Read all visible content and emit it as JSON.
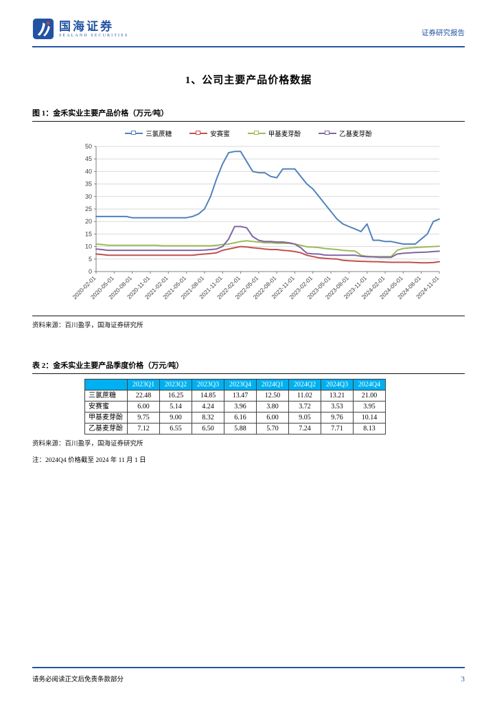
{
  "header": {
    "brand_name": "国海证券",
    "brand_sub": "SEALAND SECURITIES",
    "report_type": "证券研究报告"
  },
  "section_title": "1、公司主要产品价格数据",
  "figure": {
    "caption": "图 1：金禾实业主要产品价格（万元/吨）",
    "source": "资料来源：百川盈孚，国海证券研究所"
  },
  "chart_data": {
    "type": "line",
    "title": "",
    "xlabel": "",
    "ylabel": "",
    "ylim": [
      0,
      50
    ],
    "ytick_step": 5,
    "grid": true,
    "legend_position": "top",
    "xtick_every": 3,
    "x": [
      "2020-02-01",
      "2020-03-01",
      "2020-04-01",
      "2020-05-01",
      "2020-06-01",
      "2020-07-01",
      "2020-08-01",
      "2020-09-01",
      "2020-10-01",
      "2020-11-01",
      "2020-12-01",
      "2021-01-01",
      "2021-02-01",
      "2021-03-01",
      "2021-04-01",
      "2021-05-01",
      "2021-06-01",
      "2021-07-01",
      "2021-08-01",
      "2021-09-01",
      "2021-10-01",
      "2021-11-01",
      "2021-12-01",
      "2022-01-01",
      "2022-02-01",
      "2022-03-01",
      "2022-04-01",
      "2022-05-01",
      "2022-06-01",
      "2022-07-01",
      "2022-08-01",
      "2022-09-01",
      "2022-10-01",
      "2022-11-01",
      "2022-12-01",
      "2023-01-01",
      "2023-02-01",
      "2023-03-01",
      "2023-04-01",
      "2023-05-01",
      "2023-06-01",
      "2023-07-01",
      "2023-08-01",
      "2023-09-01",
      "2023-10-01",
      "2023-11-01",
      "2023-12-01",
      "2024-01-01",
      "2024-02-01",
      "2024-03-01",
      "2024-04-01",
      "2024-05-01",
      "2024-06-01",
      "2024-07-01",
      "2024-08-01",
      "2024-09-01",
      "2024-10-01",
      "2024-11-01"
    ],
    "series": [
      {
        "name": "三氯蔗糖",
        "color": "#4F81BD",
        "values": [
          22,
          22,
          22,
          22,
          22,
          22,
          21.5,
          21.5,
          21.5,
          21.5,
          21.5,
          21.5,
          21.5,
          21.5,
          21.5,
          21.5,
          22,
          23,
          25,
          30,
          37,
          43,
          47.5,
          48,
          48,
          44,
          40,
          39.5,
          39.5,
          38,
          37.5,
          41,
          41,
          41,
          38,
          35,
          33,
          30,
          27,
          24,
          21,
          19,
          18,
          17,
          16,
          19,
          12.5,
          12.5,
          12,
          12,
          11.5,
          11,
          11,
          11,
          13,
          15,
          20,
          21
        ]
      },
      {
        "name": "安赛蜜",
        "color": "#C0504D",
        "values": [
          7,
          6.8,
          6.5,
          6.5,
          6.5,
          6.5,
          6.5,
          6.5,
          6.5,
          6.5,
          6.5,
          6.5,
          6.5,
          6.5,
          6.5,
          6.5,
          6.5,
          6.8,
          7,
          7.2,
          7.5,
          8.5,
          9,
          9.5,
          10,
          9.8,
          9.5,
          9.3,
          9,
          8.8,
          8.8,
          8.5,
          8.3,
          8,
          7.5,
          6.5,
          6,
          5.5,
          5.3,
          5.1,
          5,
          4.5,
          4.3,
          4.2,
          4.1,
          4,
          3.96,
          3.9,
          3.8,
          3.7,
          3.72,
          3.72,
          3.72,
          3.6,
          3.5,
          3.5,
          3.6,
          3.95
        ]
      },
      {
        "name": "甲基麦芽酚",
        "color": "#9BBB59",
        "values": [
          11,
          10.8,
          10.5,
          10.5,
          10.5,
          10.5,
          10.5,
          10.5,
          10.5,
          10.5,
          10.5,
          10.3,
          10.3,
          10.3,
          10.3,
          10.3,
          10.3,
          10.3,
          10.3,
          10.3,
          10.5,
          10.8,
          11,
          11.5,
          12,
          12.3,
          12,
          11.8,
          11.5,
          11.5,
          11.3,
          11.3,
          11.3,
          11,
          10.5,
          9.9,
          9.75,
          9.6,
          9.2,
          9,
          8.8,
          8.5,
          8.3,
          8.15,
          6.5,
          6.1,
          6,
          6,
          6,
          6,
          8.5,
          9.2,
          9.45,
          9.6,
          9.75,
          9.9,
          10,
          10.15
        ]
      },
      {
        "name": "乙基麦芽酚",
        "color": "#8064A2",
        "values": [
          9,
          8.8,
          8.5,
          8.5,
          8.5,
          8.5,
          8.5,
          8.5,
          8.5,
          8.5,
          8.5,
          8.5,
          8.5,
          8.5,
          8.5,
          8.5,
          8.5,
          8.5,
          8.6,
          8.8,
          9,
          10,
          13,
          18,
          18,
          17.5,
          14,
          12.5,
          12,
          12,
          11.8,
          11.8,
          11.5,
          11,
          9.5,
          7.3,
          7.1,
          7,
          6.6,
          6.55,
          6.5,
          6.5,
          6.5,
          6.5,
          6.1,
          5.9,
          5.88,
          5.7,
          5.7,
          5.7,
          7,
          7.3,
          7.45,
          7.6,
          7.7,
          7.8,
          8,
          8.13
        ]
      }
    ]
  },
  "table": {
    "caption": "表 2：金禾实业主要产品季度价格（万元/吨）",
    "header_bg": "#00B0F0",
    "columns": [
      "2023Q1",
      "2023Q2",
      "2023Q3",
      "2023Q4",
      "2024Q1",
      "2024Q2",
      "2024Q3",
      "2024Q4"
    ],
    "rows": [
      {
        "name": "三氯蔗糖",
        "values": [
          "22.48",
          "16.25",
          "14.85",
          "13.47",
          "12.50",
          "11.02",
          "13.21",
          "21.00"
        ]
      },
      {
        "name": "安赛蜜",
        "values": [
          "6.00",
          "5.14",
          "4.24",
          "3.96",
          "3.80",
          "3.72",
          "3.53",
          "3.95"
        ]
      },
      {
        "name": "甲基麦芽酚",
        "values": [
          "9.75",
          "9.00",
          "8.32",
          "6.16",
          "6.00",
          "9.05",
          "9.76",
          "10.14"
        ]
      },
      {
        "name": "乙基麦芽酚",
        "values": [
          "7.12",
          "6.55",
          "6.50",
          "5.88",
          "5.70",
          "7.24",
          "7.71",
          "8.13"
        ]
      }
    ],
    "source": "资料来源：百川盈孚，国海证券研究所",
    "note": "注：2024Q4 价格截至 2024 年 11 月 1 日"
  },
  "footer": {
    "disclaimer": "请务必阅读正文后免责条款部分",
    "page_number": "3"
  }
}
